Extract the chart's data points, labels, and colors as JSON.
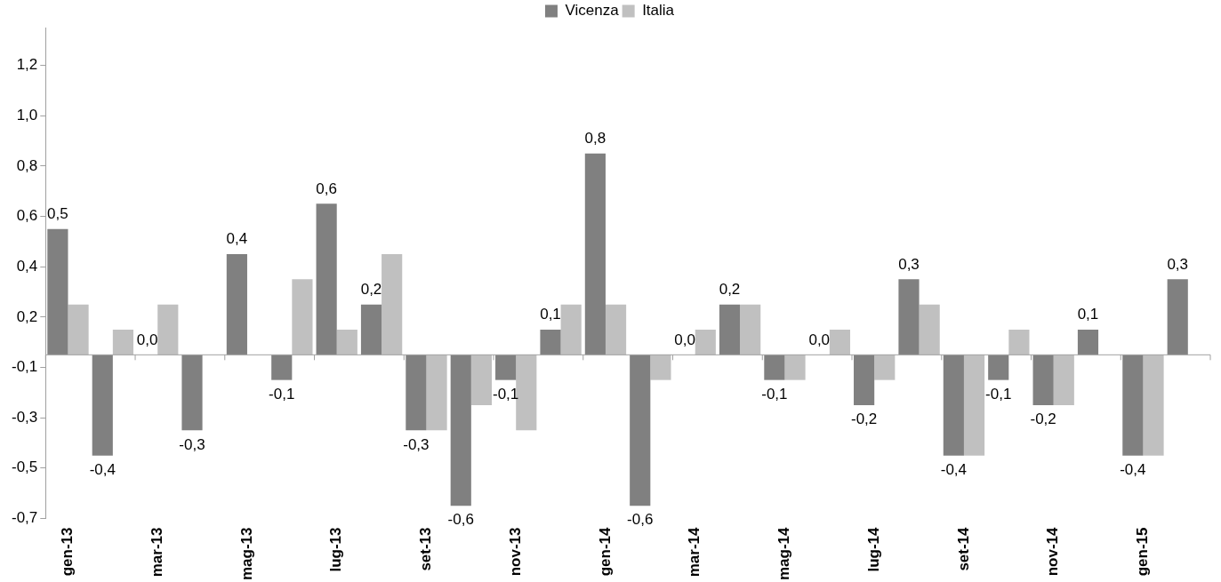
{
  "chart_data": {
    "type": "bar",
    "categories": [
      "gen-13",
      null,
      "mar-13",
      null,
      "mag-13",
      null,
      "lug-13",
      null,
      "set-13",
      null,
      "nov-13",
      null,
      "gen-14",
      null,
      "mar-14",
      null,
      "mag-14",
      null,
      "lug-14",
      null,
      "set-14",
      null,
      "nov-14",
      null,
      "gen-15",
      null
    ],
    "series": [
      {
        "name": "Vicenza",
        "color": "#808080",
        "values": [
          0.5,
          -0.4,
          0.0,
          -0.3,
          0.4,
          -0.1,
          0.6,
          0.2,
          -0.3,
          -0.6,
          -0.1,
          0.1,
          0.8,
          -0.6,
          0.0,
          0.2,
          -0.1,
          0.0,
          -0.2,
          0.3,
          -0.4,
          -0.1,
          -0.2,
          0.1,
          -0.4,
          0.3
        ],
        "value_labels": [
          "0,5",
          "-0,4",
          "0,0",
          "-0,3",
          "0,4",
          "-0,1",
          "0,6",
          "0,2",
          "-0,3",
          "-0,6",
          "-0,1",
          "0,1",
          "0,8",
          "-0,6",
          "0,0",
          "0,2",
          "-0,1",
          "0,0",
          "-0,2",
          "0,3",
          "-0,4",
          "-0,1",
          "-0,2",
          "0,1",
          "-0,4",
          "0,3"
        ]
      },
      {
        "name": "Italia",
        "color": "#c0c0c0",
        "values": [
          0.2,
          0.1,
          0.2,
          0.0,
          0.0,
          0.3,
          0.1,
          0.4,
          -0.3,
          -0.2,
          -0.3,
          0.2,
          0.2,
          -0.1,
          0.1,
          0.2,
          -0.1,
          0.1,
          -0.1,
          0.2,
          -0.4,
          0.1,
          -0.2,
          0.0,
          -0.4,
          null
        ]
      }
    ],
    "ylim": [
      -0.65,
      1.3
    ],
    "yticks": [
      {
        "value": -0.65,
        "label": "-0,7"
      },
      {
        "value": -0.45,
        "label": "-0,5"
      },
      {
        "value": -0.25,
        "label": "-0,3"
      },
      {
        "value": -0.05,
        "label": "-0,1"
      },
      {
        "value": 0.15,
        "label": "0,2"
      },
      {
        "value": 0.35,
        "label": "0,4"
      },
      {
        "value": 0.55,
        "label": "0,6"
      },
      {
        "value": 0.75,
        "label": "0,8"
      },
      {
        "value": 0.95,
        "label": "1,0"
      },
      {
        "value": 1.15,
        "label": "1,2"
      }
    ],
    "legend": "top",
    "grid": false
  }
}
